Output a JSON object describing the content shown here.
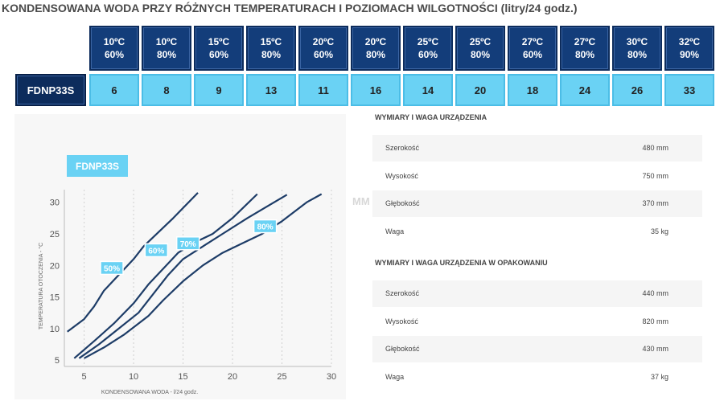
{
  "title": "KONDENSOWANA WODA PRZY RÓŻNYCH TEMPERATURACH I POZIOMACH WILGOTNOŚCI (litry/24 godz.)",
  "table": {
    "model": "FDNP33S",
    "headers": [
      {
        "temp": "10ºC",
        "hum": "60%"
      },
      {
        "temp": "10ºC",
        "hum": "80%"
      },
      {
        "temp": "15ºC",
        "hum": "60%"
      },
      {
        "temp": "15ºC",
        "hum": "80%"
      },
      {
        "temp": "20ºC",
        "hum": "60%"
      },
      {
        "temp": "20ºC",
        "hum": "80%"
      },
      {
        "temp": "25ºC",
        "hum": "60%"
      },
      {
        "temp": "25ºC",
        "hum": "80%"
      },
      {
        "temp": "27ºC",
        "hum": "60%"
      },
      {
        "temp": "27ºC",
        "hum": "80%"
      },
      {
        "temp": "30ºC",
        "hum": "80%"
      },
      {
        "temp": "32ºC",
        "hum": "90%"
      }
    ],
    "values": [
      "6",
      "8",
      "9",
      "13",
      "11",
      "16",
      "14",
      "20",
      "18",
      "24",
      "26",
      "33"
    ]
  },
  "chart_badge": "FDNP33S",
  "chart_data": {
    "type": "line",
    "xlabel": "KONDENSOWANA WODA - l/24 godz.",
    "ylabel": "TEMPERATURA OTOCZENIA - °C",
    "xlim": [
      3,
      30
    ],
    "ylim": [
      4,
      32
    ],
    "x_ticks": [
      "5",
      "10",
      "15",
      "20",
      "25",
      "30"
    ],
    "y_ticks": [
      "5",
      "10",
      "15",
      "20",
      "25",
      "30"
    ],
    "series": [
      {
        "name": "50%",
        "points": [
          [
            3.3,
            9.5
          ],
          [
            5,
            11.5
          ],
          [
            6,
            13.5
          ],
          [
            7,
            16
          ],
          [
            8.5,
            18.5
          ],
          [
            10,
            21
          ],
          [
            11,
            23
          ],
          [
            12,
            24.5
          ],
          [
            14,
            27.5
          ],
          [
            16.5,
            31.5
          ]
        ]
      },
      {
        "name": "60%",
        "points": [
          [
            4,
            5.3
          ],
          [
            6,
            8
          ],
          [
            8,
            10.8
          ],
          [
            10,
            14
          ],
          [
            11.5,
            17
          ],
          [
            13,
            19.5
          ],
          [
            14.5,
            22
          ],
          [
            16,
            23.5
          ],
          [
            18,
            25
          ],
          [
            20,
            27.5
          ],
          [
            22.5,
            31.3
          ]
        ]
      },
      {
        "name": "70%",
        "points": [
          [
            4.5,
            5.3
          ],
          [
            6.5,
            7.5
          ],
          [
            8.5,
            10
          ],
          [
            10.5,
            12.5
          ],
          [
            12,
            15.5
          ],
          [
            13.5,
            18.5
          ],
          [
            15,
            21
          ],
          [
            17,
            23
          ],
          [
            19,
            25
          ],
          [
            21.5,
            27.5
          ],
          [
            25.5,
            31.2
          ]
        ]
      },
      {
        "name": "80%",
        "points": [
          [
            5,
            5.3
          ],
          [
            7,
            7
          ],
          [
            9,
            9
          ],
          [
            11.5,
            12
          ],
          [
            13,
            14.5
          ],
          [
            15,
            17.5
          ],
          [
            17,
            20
          ],
          [
            19,
            22
          ],
          [
            21,
            23.5
          ],
          [
            23,
            25
          ],
          [
            25,
            27
          ],
          [
            27.5,
            30
          ],
          [
            29,
            31.3
          ]
        ]
      }
    ]
  },
  "specs": {
    "section1_title": "WYMIARY I WAGA URZĄDZENIA",
    "section1_rows": [
      {
        "label": "Szerokość",
        "value": "480 mm"
      },
      {
        "label": "Wysokość",
        "value": "750 mm"
      },
      {
        "label": "Głębokość",
        "value": "370 mm"
      },
      {
        "label": "Waga",
        "value": "35 kg"
      }
    ],
    "section2_title": "WYMIARY I WAGA URZĄDZENIA W OPAKOWANIU",
    "section2_rows": [
      {
        "label": "Szerokość",
        "value": "440 mm"
      },
      {
        "label": "Wysokość",
        "value": "820 mm"
      },
      {
        "label": "Głębokość",
        "value": "430 mm"
      },
      {
        "label": "Waga",
        "value": "37 kg"
      }
    ],
    "watermark": "MM"
  }
}
